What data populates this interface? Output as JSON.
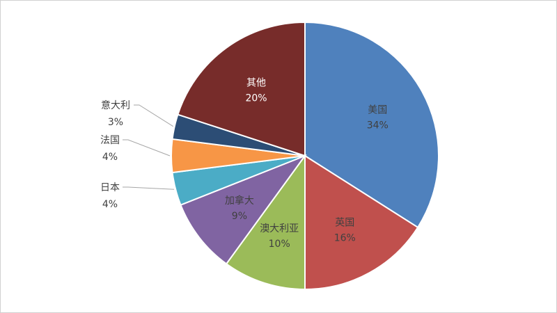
{
  "chart_data": {
    "type": "pie",
    "title": "",
    "slices": [
      {
        "label": "美国",
        "value": 34,
        "value_label": "34%",
        "color": "#4F81BD",
        "label_color": "#404040",
        "label_position": "inside"
      },
      {
        "label": "英国",
        "value": 16,
        "value_label": "16%",
        "color": "#C0504D",
        "label_color": "#404040",
        "label_position": "inside"
      },
      {
        "label": "澳大利亚",
        "value": 10,
        "value_label": "10%",
        "color": "#9BBB59",
        "label_color": "#404040",
        "label_position": "inside"
      },
      {
        "label": "加拿大",
        "value": 9,
        "value_label": "9%",
        "color": "#8064A2",
        "label_color": "#404040",
        "label_position": "inside"
      },
      {
        "label": "日本",
        "value": 4,
        "value_label": "4%",
        "color": "#4BACC6",
        "label_color": "#404040",
        "label_position": "outside"
      },
      {
        "label": "法国",
        "value": 4,
        "value_label": "4%",
        "color": "#F79646",
        "label_color": "#404040",
        "label_position": "outside"
      },
      {
        "label": "意大利",
        "value": 3,
        "value_label": "3%",
        "color": "#2C4D75",
        "label_color": "#404040",
        "label_position": "outside"
      },
      {
        "label": "其他",
        "value": 20,
        "value_label": "20%",
        "color": "#772C2A",
        "label_color": "#ffffff",
        "label_position": "inside"
      }
    ],
    "start_angle": "12 o'clock",
    "direction": "clockwise",
    "legend": "none"
  }
}
